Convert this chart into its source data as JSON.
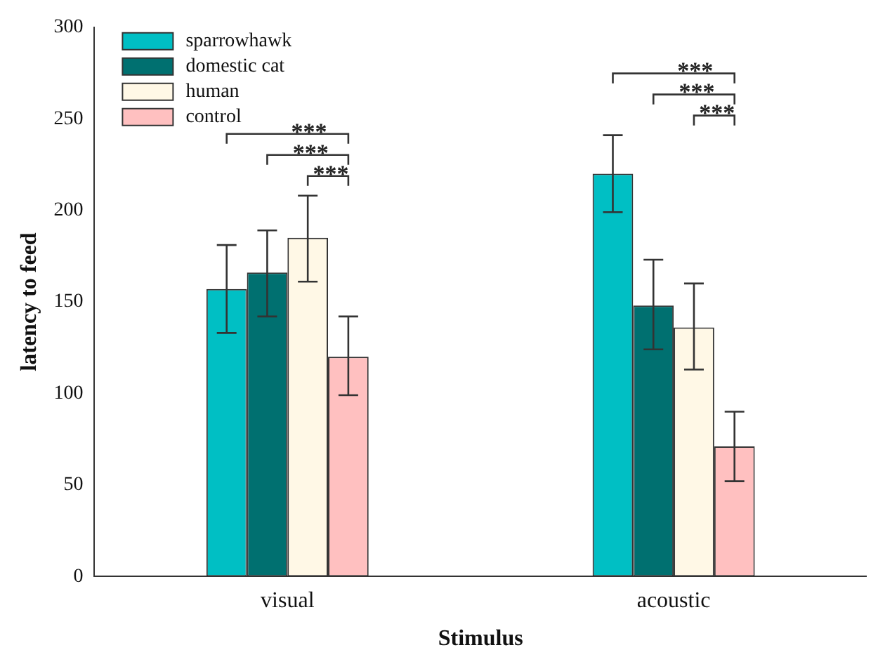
{
  "chart_data": {
    "type": "bar",
    "xlabel": "Stimulus",
    "ylabel": "latency to feed",
    "categories": [
      "visual",
      "acoustic"
    ],
    "series": [
      {
        "name": "sparrowhawk",
        "color": "#00bfc4",
        "values": [
          157,
          220
        ],
        "errors": [
          [
            133,
            181
          ],
          [
            199,
            241
          ]
        ]
      },
      {
        "name": "domestic cat",
        "color": "#007070",
        "values": [
          166,
          148
        ],
        "errors": [
          [
            142,
            189
          ],
          [
            124,
            173
          ]
        ]
      },
      {
        "name": "human",
        "color": "#fff8e6",
        "values": [
          185,
          136
        ],
        "errors": [
          [
            161,
            208
          ],
          [
            113,
            160
          ]
        ]
      },
      {
        "name": "control",
        "color": "#ffc0c0",
        "values": [
          120,
          71
        ],
        "errors": [
          [
            99,
            142
          ],
          [
            52,
            90
          ]
        ]
      }
    ],
    "annotations": [
      "***",
      "***",
      "***",
      "***",
      "***",
      "***"
    ],
    "ylim": [
      0,
      300
    ],
    "yticks": [
      0,
      50,
      100,
      150,
      200,
      250,
      300
    ],
    "grid": false,
    "legend": "top left"
  }
}
